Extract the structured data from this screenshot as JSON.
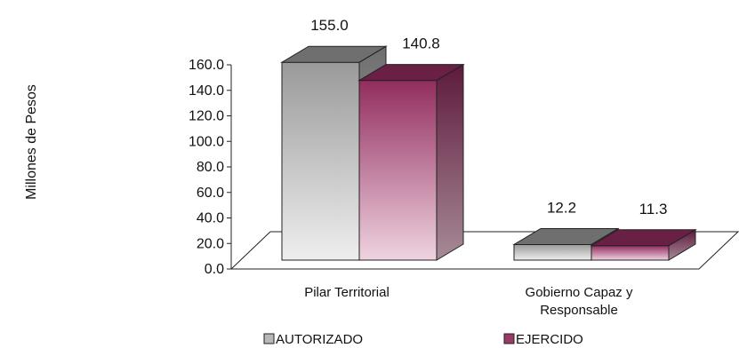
{
  "chart_data": {
    "type": "bar",
    "categories": [
      "Pilar Territorial",
      "Gobierno Capaz y Responsable"
    ],
    "category_lines": [
      [
        "Pilar Territorial"
      ],
      [
        "Gobierno Capaz y",
        "Responsable"
      ]
    ],
    "series": [
      {
        "name": "AUTORIZADO",
        "values": [
          155.0,
          12.2
        ],
        "labels": [
          "155.0",
          "12.2"
        ],
        "color": "#9a9a9a"
      },
      {
        "name": "EJERCIDO",
        "values": [
          140.8,
          11.3
        ],
        "labels": [
          "140.8",
          "11.3"
        ],
        "color": "#8c2a5a"
      }
    ],
    "ylabel": "Millones de Pesos",
    "ylim": [
      0,
      160
    ],
    "yticks": [
      "0.0",
      "20.0",
      "40.0",
      "60.0",
      "80.0",
      "100.0",
      "120.0",
      "140.0",
      "160.0"
    ],
    "legend_position": "bottom",
    "grid": false
  }
}
